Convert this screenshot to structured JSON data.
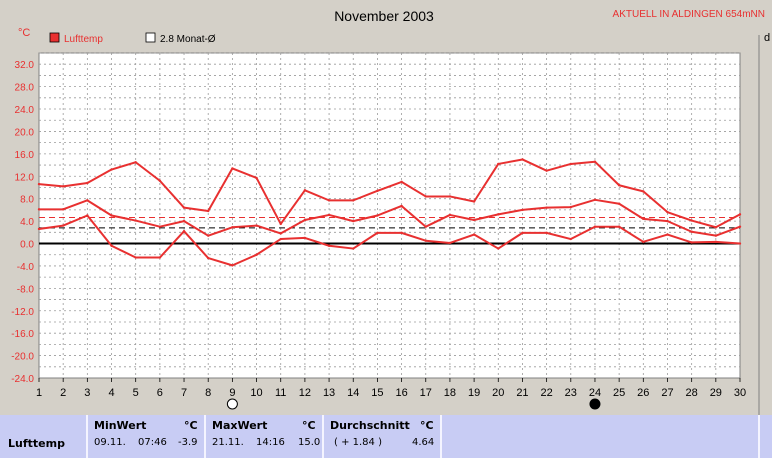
{
  "title": "November 2003",
  "status_text": "AKTUELL IN ALDINGEN 654mNN",
  "unit": "°C",
  "legend": [
    {
      "label": "Lufttemp",
      "color": "#e83030",
      "filled": true
    },
    {
      "label": "2.8 Monat-Ø",
      "color": "#000000",
      "filled": false
    }
  ],
  "right_edge_label": "d",
  "colors": {
    "series": "#e83030",
    "grid": "#9a9a9a",
    "background": "#ffffff",
    "panel": "#c8ccf4",
    "frame": "#d4d0c8"
  },
  "chart_data": {
    "type": "line",
    "x": [
      1,
      2,
      3,
      4,
      5,
      6,
      7,
      8,
      9,
      10,
      11,
      12,
      13,
      14,
      15,
      16,
      17,
      18,
      19,
      20,
      21,
      22,
      23,
      24,
      25,
      26,
      27,
      28,
      29,
      30
    ],
    "xlim": [
      1,
      30
    ],
    "ylim": [
      -24,
      34
    ],
    "yticks": [
      32.0,
      28.0,
      24.0,
      20.0,
      16.0,
      12.0,
      8.0,
      4.0,
      0.0,
      -4.0,
      -8.0,
      -12.0,
      -16.0,
      -20.0,
      -24.0
    ],
    "ytick_labels": [
      "32.0",
      "28.0",
      "24.0",
      "20.0",
      "16.0",
      "12.0",
      "8.0",
      "4.0",
      "0.0",
      "-4.0",
      "-8.0",
      "-12.0",
      "-16.0",
      "-20.0",
      "-24.0"
    ],
    "grid": true,
    "series": [
      {
        "name": "max",
        "values": [
          10.6,
          10.2,
          10.8,
          13.2,
          14.5,
          11.2,
          6.4,
          5.8,
          13.4,
          11.7,
          3.5,
          9.5,
          7.7,
          7.7,
          9.4,
          11.0,
          8.4,
          8.4,
          7.5,
          14.2,
          15.0,
          13.0,
          14.2,
          14.6,
          10.4,
          9.3,
          5.6,
          4.1,
          2.9,
          5.2
        ]
      },
      {
        "name": "mean",
        "values": [
          6.1,
          6.1,
          7.7,
          5.0,
          4.1,
          3.0,
          4.0,
          1.4,
          2.9,
          3.2,
          1.8,
          4.2,
          5.1,
          4.0,
          5.0,
          6.7,
          3.0,
          5.1,
          4.2,
          5.2,
          6.0,
          6.4,
          6.5,
          7.8,
          7.1,
          4.4,
          4.0,
          2.1,
          1.4,
          3.0
        ]
      },
      {
        "name": "min",
        "values": [
          2.6,
          3.2,
          5.0,
          -0.4,
          -2.5,
          -2.5,
          2.2,
          -2.6,
          -3.9,
          -2.0,
          0.8,
          1.0,
          -0.4,
          -0.9,
          1.9,
          1.9,
          0.5,
          0.1,
          1.6,
          -0.9,
          1.9,
          1.9,
          0.8,
          3.0,
          3.0,
          0.3,
          1.6,
          0.2,
          0.3,
          0.0
        ]
      }
    ],
    "ref_lines": [
      {
        "value": 2.8,
        "style": "dashed",
        "color": "#000000"
      },
      {
        "value": 4.64,
        "style": "dashed",
        "color": "#e83030"
      }
    ],
    "moon_markers": [
      {
        "day": 9,
        "phase": "full"
      },
      {
        "day": 24,
        "phase": "new"
      }
    ]
  },
  "stats": {
    "row_label": "Lufttemp",
    "min": {
      "header": "MinWert",
      "unit": "°C",
      "date": "09.11.",
      "time": "07:46",
      "value": "-3.9"
    },
    "max": {
      "header": "MaxWert",
      "unit": "°C",
      "date": "21.11.",
      "time": "14:16",
      "value": "15.0"
    },
    "avg": {
      "header": "Durchschnitt",
      "unit": "°C",
      "delta": "( + 1.84 )",
      "value": "4.64"
    }
  }
}
